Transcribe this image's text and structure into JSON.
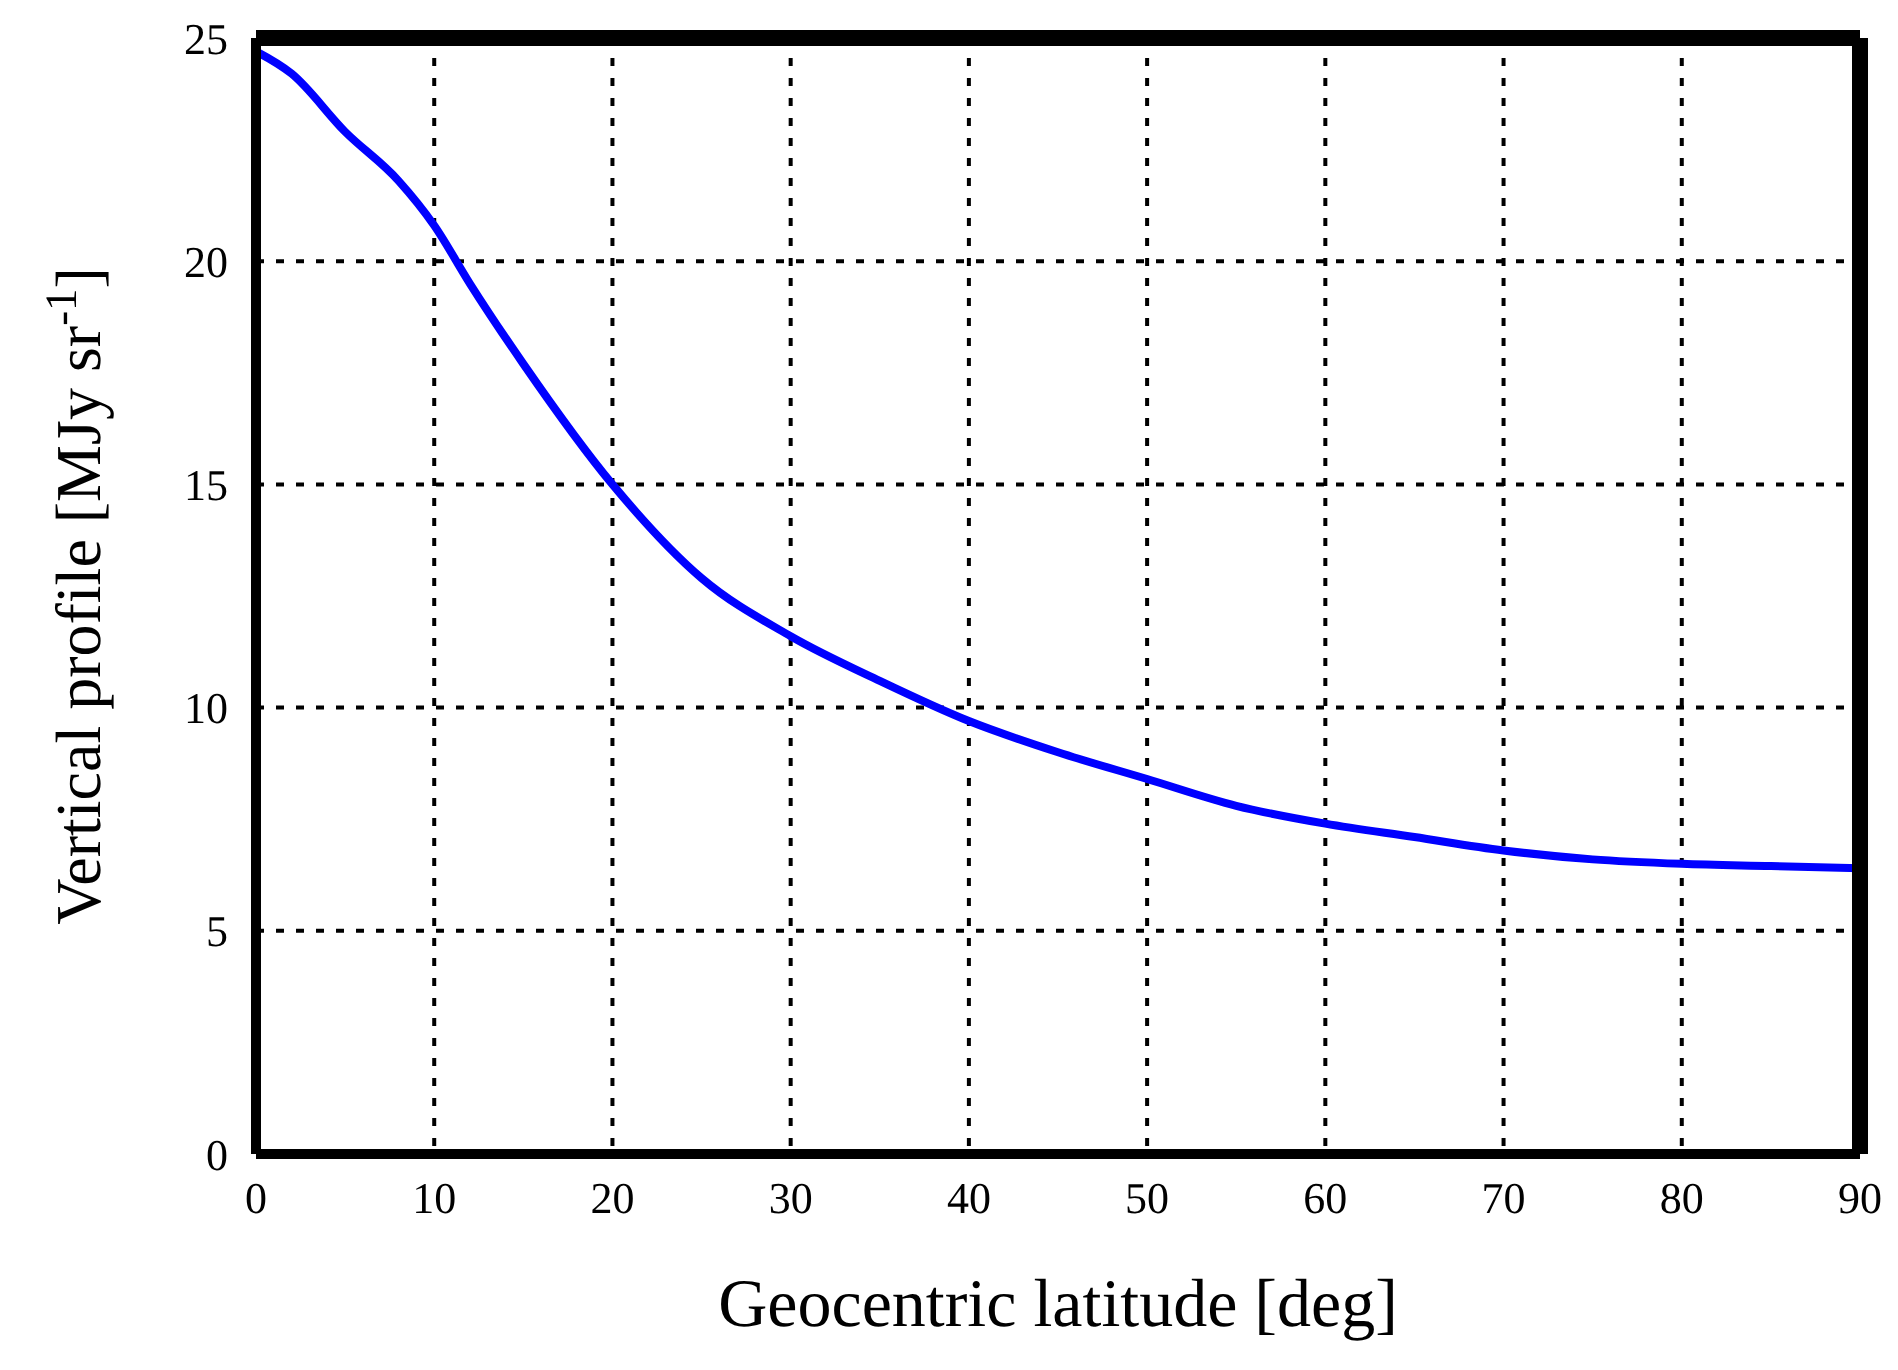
{
  "chart_data": {
    "type": "line",
    "xlabel": "Geocentric latitude [deg]",
    "ylabel": "Vertical profile [MJy sr$^{-1}$]",
    "x": [
      0,
      2,
      5,
      8,
      10,
      12,
      15,
      20,
      25,
      30,
      35,
      40,
      45,
      50,
      55,
      60,
      65,
      70,
      75,
      80,
      85,
      90
    ],
    "series": [
      {
        "color": "#0000ff",
        "values": [
          24.7,
          24.2,
          22.9,
          21.8,
          20.8,
          19.5,
          17.7,
          15.0,
          12.9,
          11.6,
          10.6,
          9.7,
          9.0,
          8.4,
          7.8,
          7.4,
          7.1,
          6.8,
          6.6,
          6.5,
          6.45,
          6.4
        ]
      }
    ],
    "xlim": [
      0,
      90
    ],
    "xticks": [
      0,
      10,
      20,
      30,
      40,
      50,
      60,
      70,
      80,
      90
    ],
    "ylim": [
      0,
      25
    ],
    "yticks": [
      0,
      5,
      10,
      15,
      20,
      25
    ],
    "grid": true,
    "line_style": "solid",
    "marker": "none",
    "legend": false
  }
}
